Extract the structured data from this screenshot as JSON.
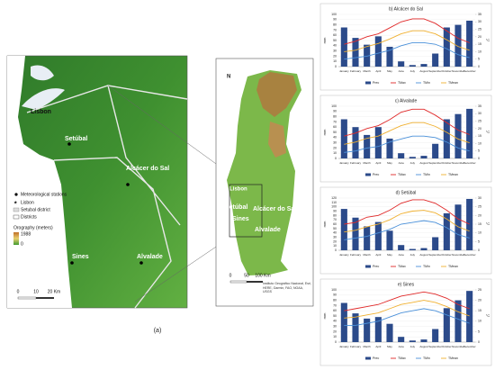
{
  "map": {
    "caption": "(a)",
    "left": {
      "places": [
        "Lisbon",
        "Setúbal",
        "Alcácer do Sal",
        "Sines",
        "Alvalade"
      ],
      "legend": [
        "Meteorological stations",
        "Lisbon",
        "Setubal district",
        "Districts"
      ],
      "orography_title": "Orography (meters)",
      "elev_max": "1988",
      "elev_min": "0",
      "scale": [
        "0",
        "10",
        "20 Km"
      ],
      "north": "N"
    },
    "inset": {
      "places": [
        "Lisbon",
        "Setúbal",
        "Alcácer do Sal",
        "Sines",
        "Alvalade"
      ],
      "scale": [
        "0",
        "50",
        "100 Km"
      ],
      "north": "N",
      "credit": "Instituto Geográfico Nacional, Esri, HERE, Garmin, FAO, NOAA, USGS"
    }
  },
  "chart_data": [
    {
      "type": "bar",
      "title": "b) Alcácer do Sal",
      "y_label": "mm",
      "y2_label": "°C",
      "categories": [
        "January",
        "February",
        "March",
        "April",
        "May",
        "June",
        "July",
        "August",
        "September",
        "October",
        "November",
        "December"
      ],
      "ylim": [
        0,
        100
      ],
      "yticks": [
        0,
        10,
        20,
        30,
        40,
        50,
        60,
        70,
        80,
        90,
        100
      ],
      "y2lim": [
        0,
        35
      ],
      "y2ticks": [
        0,
        5,
        10,
        15,
        20,
        25,
        30,
        35
      ],
      "series": [
        {
          "name": "Prec",
          "type": "bar",
          "color": "#2b4a8a",
          "values": [
            75,
            55,
            42,
            58,
            38,
            10,
            3,
            5,
            25,
            75,
            80,
            88
          ]
        },
        {
          "name": "TMax",
          "type": "line",
          "axis": "y2",
          "color": "#e02828",
          "values": [
            15,
            17,
            20,
            22,
            26,
            30,
            32,
            32,
            29,
            24,
            19,
            16
          ]
        },
        {
          "name": "TMin",
          "type": "line",
          "axis": "y2",
          "color": "#4a90d9",
          "values": [
            5,
            6,
            7,
            9,
            11,
            14,
            16,
            16,
            15,
            12,
            8,
            6
          ]
        },
        {
          "name": "TMean",
          "type": "line",
          "axis": "y2",
          "color": "#f0b030",
          "values": [
            10,
            11,
            13.5,
            15.5,
            18.5,
            22,
            24,
            24,
            22,
            18,
            13.5,
            11
          ]
        }
      ]
    },
    {
      "type": "bar",
      "title": "c) Alvalade",
      "y_label": "mm",
      "y2_label": "°C",
      "categories": [
        "January",
        "February",
        "March",
        "April",
        "May",
        "June",
        "July",
        "August",
        "September",
        "October",
        "November",
        "December"
      ],
      "ylim": [
        0,
        100
      ],
      "yticks": [
        0,
        10,
        20,
        30,
        40,
        50,
        60,
        70,
        80,
        90,
        100
      ],
      "y2lim": [
        0,
        35
      ],
      "y2ticks": [
        0,
        5,
        10,
        15,
        20,
        25,
        30,
        35
      ],
      "series": [
        {
          "name": "Prec",
          "type": "bar",
          "color": "#2b4a8a",
          "values": [
            75,
            60,
            45,
            60,
            38,
            10,
            3,
            5,
            28,
            75,
            85,
            95
          ]
        },
        {
          "name": "TMax",
          "type": "line",
          "axis": "y2",
          "color": "#e02828",
          "values": [
            15,
            17,
            20,
            22,
            26,
            31,
            33,
            33,
            29,
            24,
            19,
            16
          ]
        },
        {
          "name": "TMin",
          "type": "line",
          "axis": "y2",
          "color": "#4a90d9",
          "values": [
            4,
            5,
            7,
            8,
            11,
            13,
            15,
            15,
            14,
            11,
            7,
            5
          ]
        },
        {
          "name": "TMean",
          "type": "line",
          "axis": "y2",
          "color": "#f0b030",
          "values": [
            9.5,
            11,
            13.5,
            15,
            18.5,
            22,
            24,
            24,
            21.5,
            17.5,
            13,
            10.5
          ]
        }
      ]
    },
    {
      "type": "bar",
      "title": "d) Setúbal",
      "y_label": "mm",
      "y2_label": "°C",
      "categories": [
        "January",
        "February",
        "March",
        "April",
        "May",
        "June",
        "July",
        "August",
        "September",
        "October",
        "November",
        "December"
      ],
      "ylim": [
        0,
        120
      ],
      "yticks": [
        0,
        10,
        20,
        30,
        40,
        50,
        60,
        70,
        80,
        90,
        100,
        110,
        120
      ],
      "y2lim": [
        0,
        30
      ],
      "y2ticks": [
        0,
        5,
        10,
        15,
        20,
        25,
        30
      ],
      "series": [
        {
          "name": "Prec",
          "type": "bar",
          "color": "#2b4a8a",
          "values": [
            95,
            75,
            55,
            65,
            45,
            12,
            3,
            5,
            30,
            85,
            105,
            118
          ]
        },
        {
          "name": "TMax",
          "type": "line",
          "axis": "y2",
          "color": "#e02828",
          "values": [
            15,
            16,
            19,
            20,
            23,
            27,
            29,
            29,
            27,
            23,
            18,
            15
          ]
        },
        {
          "name": "TMin",
          "type": "line",
          "axis": "y2",
          "color": "#4a90d9",
          "values": [
            6,
            7,
            8,
            10,
            12,
            15,
            16,
            17,
            16,
            13,
            9,
            7
          ]
        },
        {
          "name": "TMean",
          "type": "line",
          "axis": "y2",
          "color": "#f0b030",
          "values": [
            10.5,
            11.5,
            13.5,
            15,
            17.5,
            21,
            22.5,
            23,
            21.5,
            18,
            13.5,
            11
          ]
        }
      ]
    },
    {
      "type": "bar",
      "title": "e) Sines",
      "y_label": "mm",
      "y2_label": "°C",
      "categories": [
        "January",
        "February",
        "March",
        "April",
        "May",
        "June",
        "July",
        "August",
        "September",
        "October",
        "November",
        "December"
      ],
      "ylim": [
        0,
        100
      ],
      "yticks": [
        0,
        10,
        20,
        30,
        40,
        50,
        60,
        70,
        80,
        90,
        100
      ],
      "y2lim": [
        0,
        25
      ],
      "y2ticks": [
        0,
        5,
        10,
        15,
        20,
        25
      ],
      "series": [
        {
          "name": "Prec",
          "type": "bar",
          "color": "#2b4a8a",
          "values": [
            75,
            55,
            45,
            48,
            35,
            10,
            3,
            5,
            25,
            65,
            80,
            98
          ]
        },
        {
          "name": "TMax",
          "type": "line",
          "axis": "y2",
          "color": "#e02828",
          "values": [
            15,
            16,
            17,
            18,
            20,
            22,
            23,
            24,
            23,
            21,
            18,
            16
          ]
        },
        {
          "name": "TMin",
          "type": "line",
          "axis": "y2",
          "color": "#4a90d9",
          "values": [
            8,
            8,
            9,
            10,
            12,
            14,
            15,
            16,
            15,
            13,
            11,
            9
          ]
        },
        {
          "name": "TMean",
          "type": "line",
          "axis": "y2",
          "color": "#f0b030",
          "values": [
            11.5,
            12,
            13,
            14,
            16,
            18,
            19,
            20,
            19,
            17,
            14.5,
            12.5
          ]
        }
      ]
    }
  ]
}
